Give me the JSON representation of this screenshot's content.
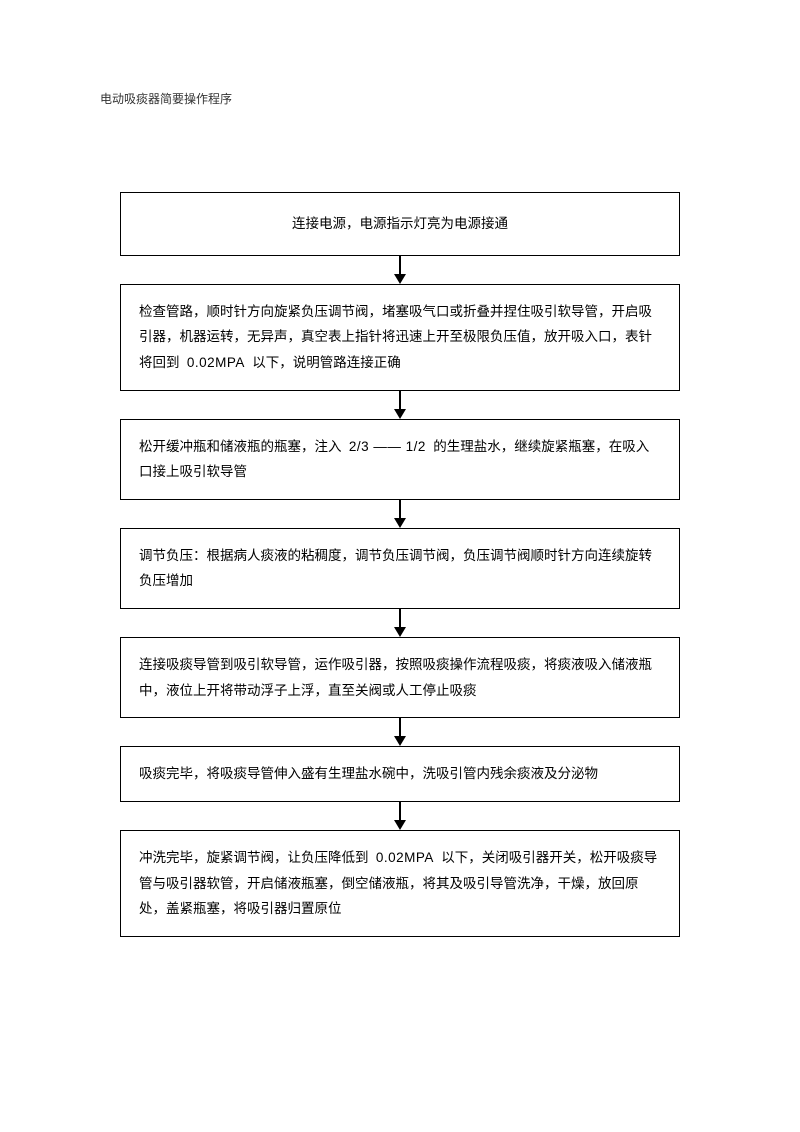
{
  "document": {
    "title": "电动吸痰器简要操作程序"
  },
  "flowchart": {
    "type": "flowchart",
    "direction": "vertical",
    "box_border_color": "#000000",
    "background_color": "#ffffff",
    "text_color": "#000000",
    "font_size": 13.5,
    "steps": [
      {
        "text": "连接电源，电源指示灯亮为电源接通",
        "align": "center"
      },
      {
        "text_pre": "检查管路，顺时针方向旋紧负压调节阀，堵塞吸气口或折叠并捏住吸引软导管，开启吸引器，机器运转，无异声，真空表上指针将迅速上开至极限负压值，放开吸入口，表针将回到",
        "value": "0.02MPA",
        "text_post": "以下，说明管路连接正确",
        "align": "left"
      },
      {
        "text_pre": "松开缓冲瓶和储液瓶的瓶塞，注入",
        "value": "2/3 —— 1/2",
        "text_post": "的生理盐水，继续旋紧瓶塞，在吸入口接上吸引软导管",
        "align": "left"
      },
      {
        "text": "调节负压：根据病人痰液的粘稠度，调节负压调节阀，负压调节阀顺时针方向连续旋转负压增加",
        "align": "left"
      },
      {
        "text": "连接吸痰导管到吸引软导管，运作吸引器，按照吸痰操作流程吸痰，将痰液吸入储液瓶中，液位上开将带动浮子上浮，直至关阀或人工停止吸痰",
        "align": "left"
      },
      {
        "text": "吸痰完毕，将吸痰导管伸入盛有生理盐水碗中，洗吸引管内残余痰液及分泌物",
        "align": "left"
      },
      {
        "text_pre": "冲洗完毕，旋紧调节阀，让负压降低到",
        "value": "0.02MPA",
        "text_post": "以下，关闭吸引器开关，松开吸痰导管与吸引器软管，开启储液瓶塞，倒空储液瓶，将其及吸引导管洗净，干燥，放回原处，盖紧瓶塞，将吸引器归置原位",
        "align": "left"
      }
    ]
  }
}
